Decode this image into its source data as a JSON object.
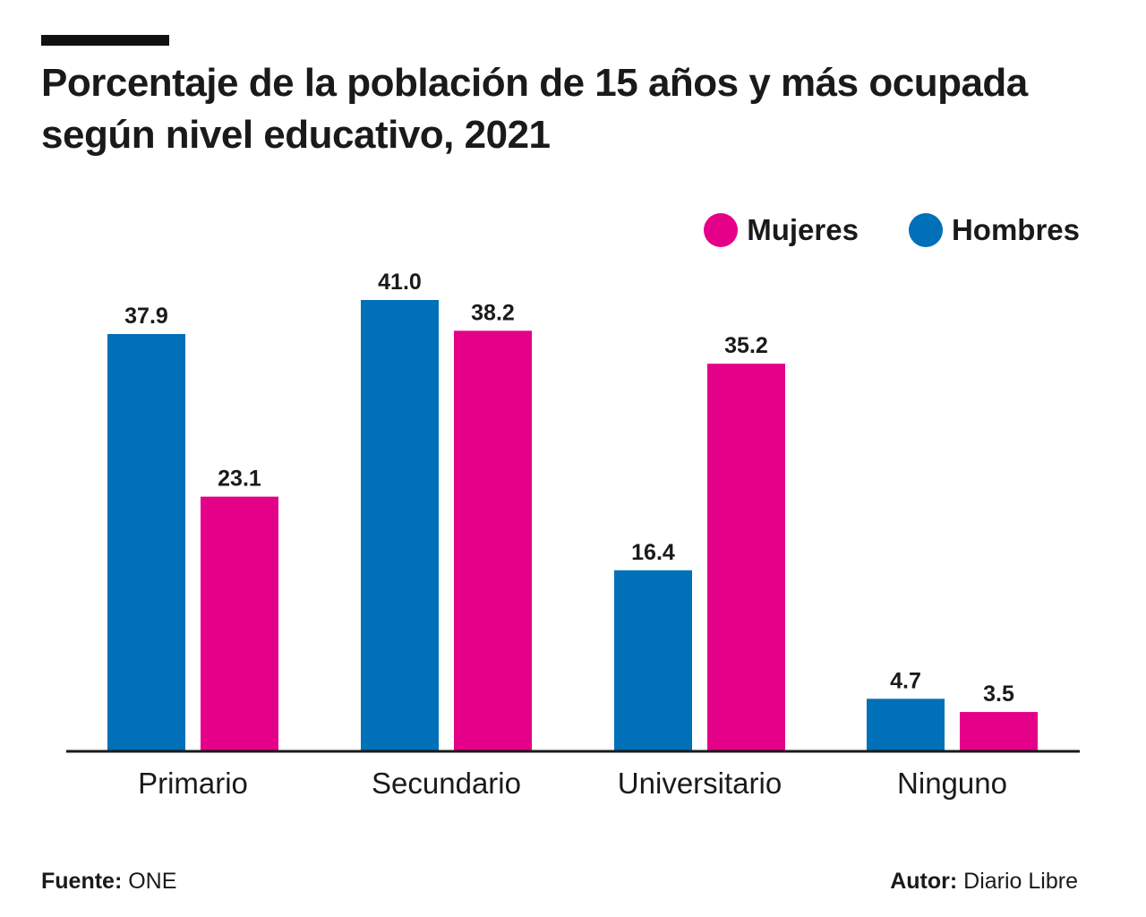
{
  "colors": {
    "mujeres": "#e5008a",
    "hombres": "#0070b8",
    "axis": "#1a1a1a"
  },
  "title_line1": "Porcentaje de la población de 15 años y más ocupada",
  "title_line2": "según nivel educativo, 2021",
  "chart_data": {
    "type": "bar",
    "title": "Porcentaje de la población de 15 años y más ocupada según nivel educativo, 2021",
    "categories": [
      "Primario",
      "Secundario",
      "Universitario",
      "Ninguno"
    ],
    "series": [
      {
        "name": "Hombres",
        "color": "#0070b8",
        "values": [
          37.9,
          41.0,
          16.4,
          4.7
        ],
        "labels": [
          "37.9",
          "41.0",
          "16.4",
          "4.7"
        ]
      },
      {
        "name": "Mujeres",
        "color": "#e5008a",
        "values": [
          23.1,
          38.2,
          35.2,
          3.5
        ],
        "labels": [
          "23.1",
          "38.2",
          "35.2",
          "3.5"
        ]
      }
    ],
    "legend": [
      "Mujeres",
      "Hombres"
    ],
    "legend_position": "top-right",
    "xlabel": "",
    "ylabel": "",
    "ylim": [
      0,
      41.5
    ],
    "grid": false
  },
  "legend": {
    "mujeres": "Mujeres",
    "hombres": "Hombres"
  },
  "footer": {
    "source_label": "Fuente:",
    "source_value": "ONE",
    "author_label": "Autor:",
    "author_value": "Diario Libre"
  }
}
